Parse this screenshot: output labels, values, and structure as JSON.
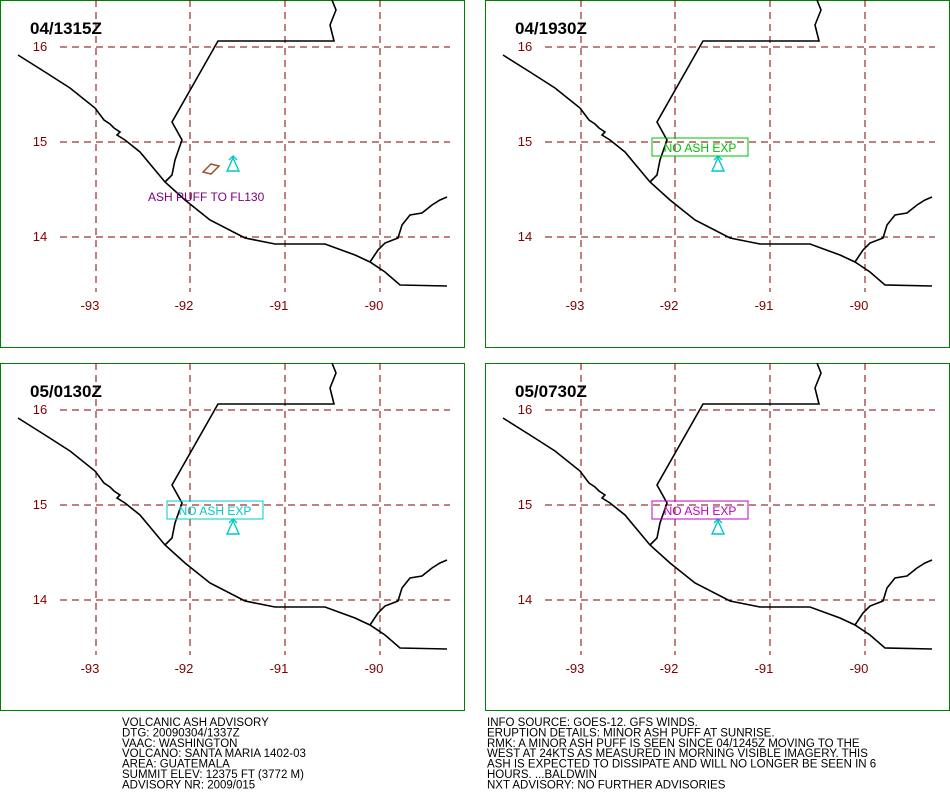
{
  "panels": [
    {
      "time": "04/1315Z",
      "annotation": "ASH PUFF TO FL130",
      "color": "#800080",
      "boxed": false
    },
    {
      "time": "04/1930Z",
      "annotation": "NO  ASH  EXP",
      "color": "#00c000",
      "boxed": true
    },
    {
      "time": "05/0130Z",
      "annotation": "NO  ASH  EXP",
      "color": "#00c8c8",
      "boxed": true
    },
    {
      "time": "05/0730Z",
      "annotation": "NO  ASH  EXP",
      "color": "#c000c0",
      "boxed": true
    }
  ],
  "lat_labels": [
    "16",
    "15",
    "14"
  ],
  "lon_labels": [
    "-93",
    "-92",
    "-91",
    "-90"
  ],
  "advisory": [
    "VOLCANIC ASH ADVISORY",
    "DTG: 20090304/1337Z",
    "VAAC: WASHINGTON",
    "VOLCANO: SANTA MARIA 1402-03",
    "AREA: GUATEMALA",
    "SUMMIT ELEV: 12375 FT (3772 M)",
    "ADVISORY NR: 2009/015"
  ],
  "info": [
    "INFO SOURCE: GOES-12. GFS WINDS.",
    "ERUPTION DETAILS: MINOR ASH PUFF AT SUNRISE.",
    "RMK: A MINOR ASH PUFF IS SEEN SINCE 04/1245Z MOVING TO THE",
    "WEST AT 24KTS AS MEASURED IN MORNING VISIBLE IMAGERY. THIS",
    "ASH IS EXPECTED TO DISSIPATE AND WILL NO LONGER BE SEEN IN 6",
    "HOURS.  ...BALDWIN",
    "NXT ADVISORY: NO FURTHER ADVISORIES"
  ]
}
